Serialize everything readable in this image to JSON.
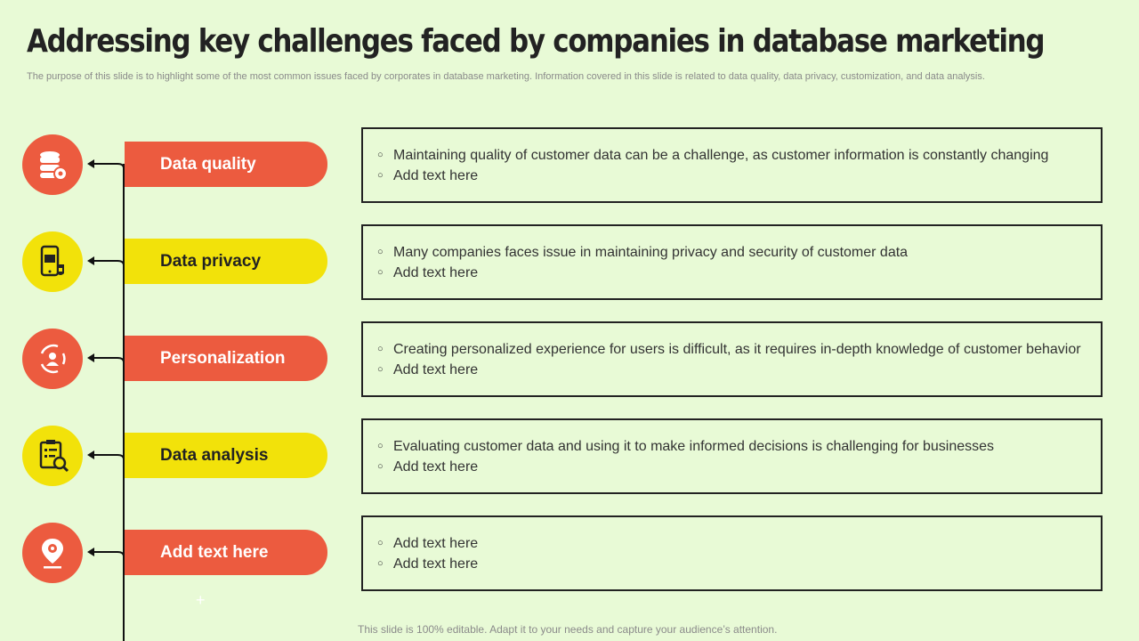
{
  "title": "Addressing key challenges faced by companies in database marketing",
  "subtitle": "The purpose of this slide is to highlight some of the most common issues faced by corporates in database marketing. Information covered in this slide is related to data quality, data privacy, customization, and data analysis.",
  "footer": "This slide is 100% editable. Adapt it to your needs and capture your audience’s attention.",
  "colors": {
    "background": "#e8fad6",
    "red": "#ec5b3f",
    "yellow": "#f2e20a",
    "text": "#222222"
  },
  "rows": [
    {
      "label": "Data quality",
      "icon": "database-gear-icon",
      "color": "red",
      "bullets": [
        "Maintaining quality of customer data can be a challenge, as customer information is constantly  changing",
        "Add text here"
      ]
    },
    {
      "label": "Data privacy",
      "icon": "phone-lock-icon",
      "color": "yellow",
      "bullets": [
        "Many companies faces issue in maintaining privacy and security of customer data",
        "Add text here"
      ]
    },
    {
      "label": "Personalization",
      "icon": "user-cycle-icon",
      "color": "red",
      "bullets": [
        "Creating personalized experience for users is difficult, as it requires in-depth knowledge of customer behavior",
        "Add text here"
      ]
    },
    {
      "label": "Data analysis",
      "icon": "clipboard-analysis-icon",
      "color": "yellow",
      "bullets": [
        "Evaluating customer data and using it to make informed decisions is challenging for businesses",
        "Add text here"
      ]
    },
    {
      "label": "Add text here",
      "icon": "location-pin-icon",
      "color": "red",
      "bullets": [
        "Add text here",
        "Add text here"
      ]
    }
  ]
}
